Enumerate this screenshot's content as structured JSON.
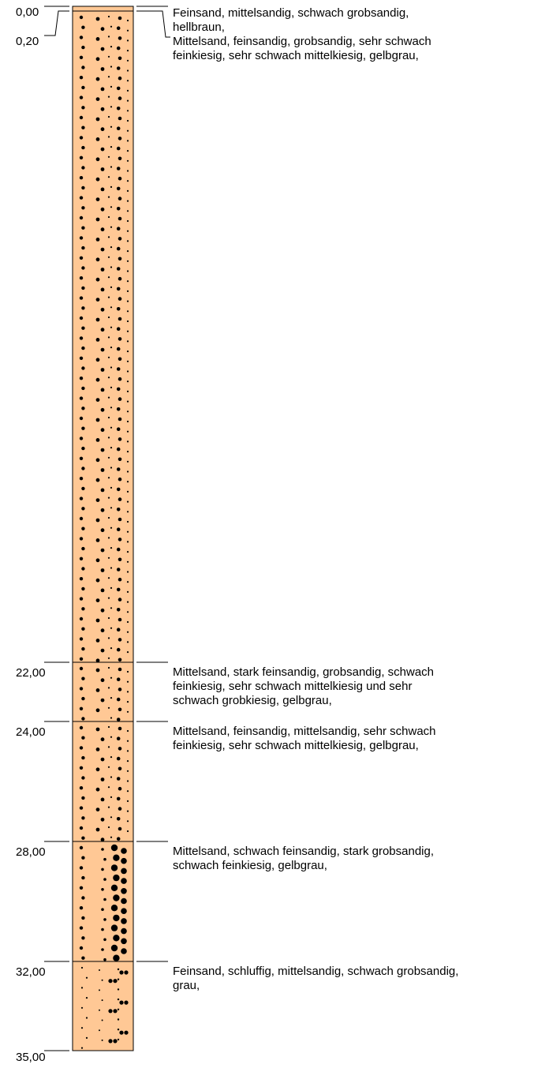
{
  "colors": {
    "sand": "#FFC895",
    "line": "#000000",
    "dot": "#000000"
  },
  "depths": [
    "0,00",
    "0,20",
    "22,00",
    "24,00",
    "28,00",
    "32,00",
    "35,00"
  ],
  "layers": [
    {
      "top": 0.0,
      "bottom": 0.2,
      "pattern": "fine",
      "description": "Feinsand, mittelsandig, schwach grobsandig,\nhellbraun,"
    },
    {
      "top": 0.2,
      "bottom": 22.0,
      "pattern": "medium",
      "description": "Mittelsand, feinsandig, grobsandig, sehr schwach\nfeinkiesig, sehr schwach mittelkiesig, gelbgrau,"
    },
    {
      "top": 22.0,
      "bottom": 24.0,
      "pattern": "medium",
      "description": "Mittelsand, stark feinsandig, grobsandig, schwach\nfeinkiesig, sehr schwach mittelkiesig und sehr\nschwach grobkiesig, gelbgrau,"
    },
    {
      "top": 24.0,
      "bottom": 28.0,
      "pattern": "medium",
      "description": "Mittelsand, feinsandig, mittelsandig, sehr schwach\nfeinkiesig, sehr schwach mittelkiesig, gelbgrau,"
    },
    {
      "top": 28.0,
      "bottom": 32.0,
      "pattern": "coarse",
      "description": "Mittelsand, schwach feinsandig, stark grobsandig,\nschwach feinkiesig, gelbgrau,"
    },
    {
      "top": 32.0,
      "bottom": 35.0,
      "pattern": "silty",
      "description": "Feinsand, schluffig, mittelsandig, schwach grobsandig,\ngrau,"
    }
  ]
}
